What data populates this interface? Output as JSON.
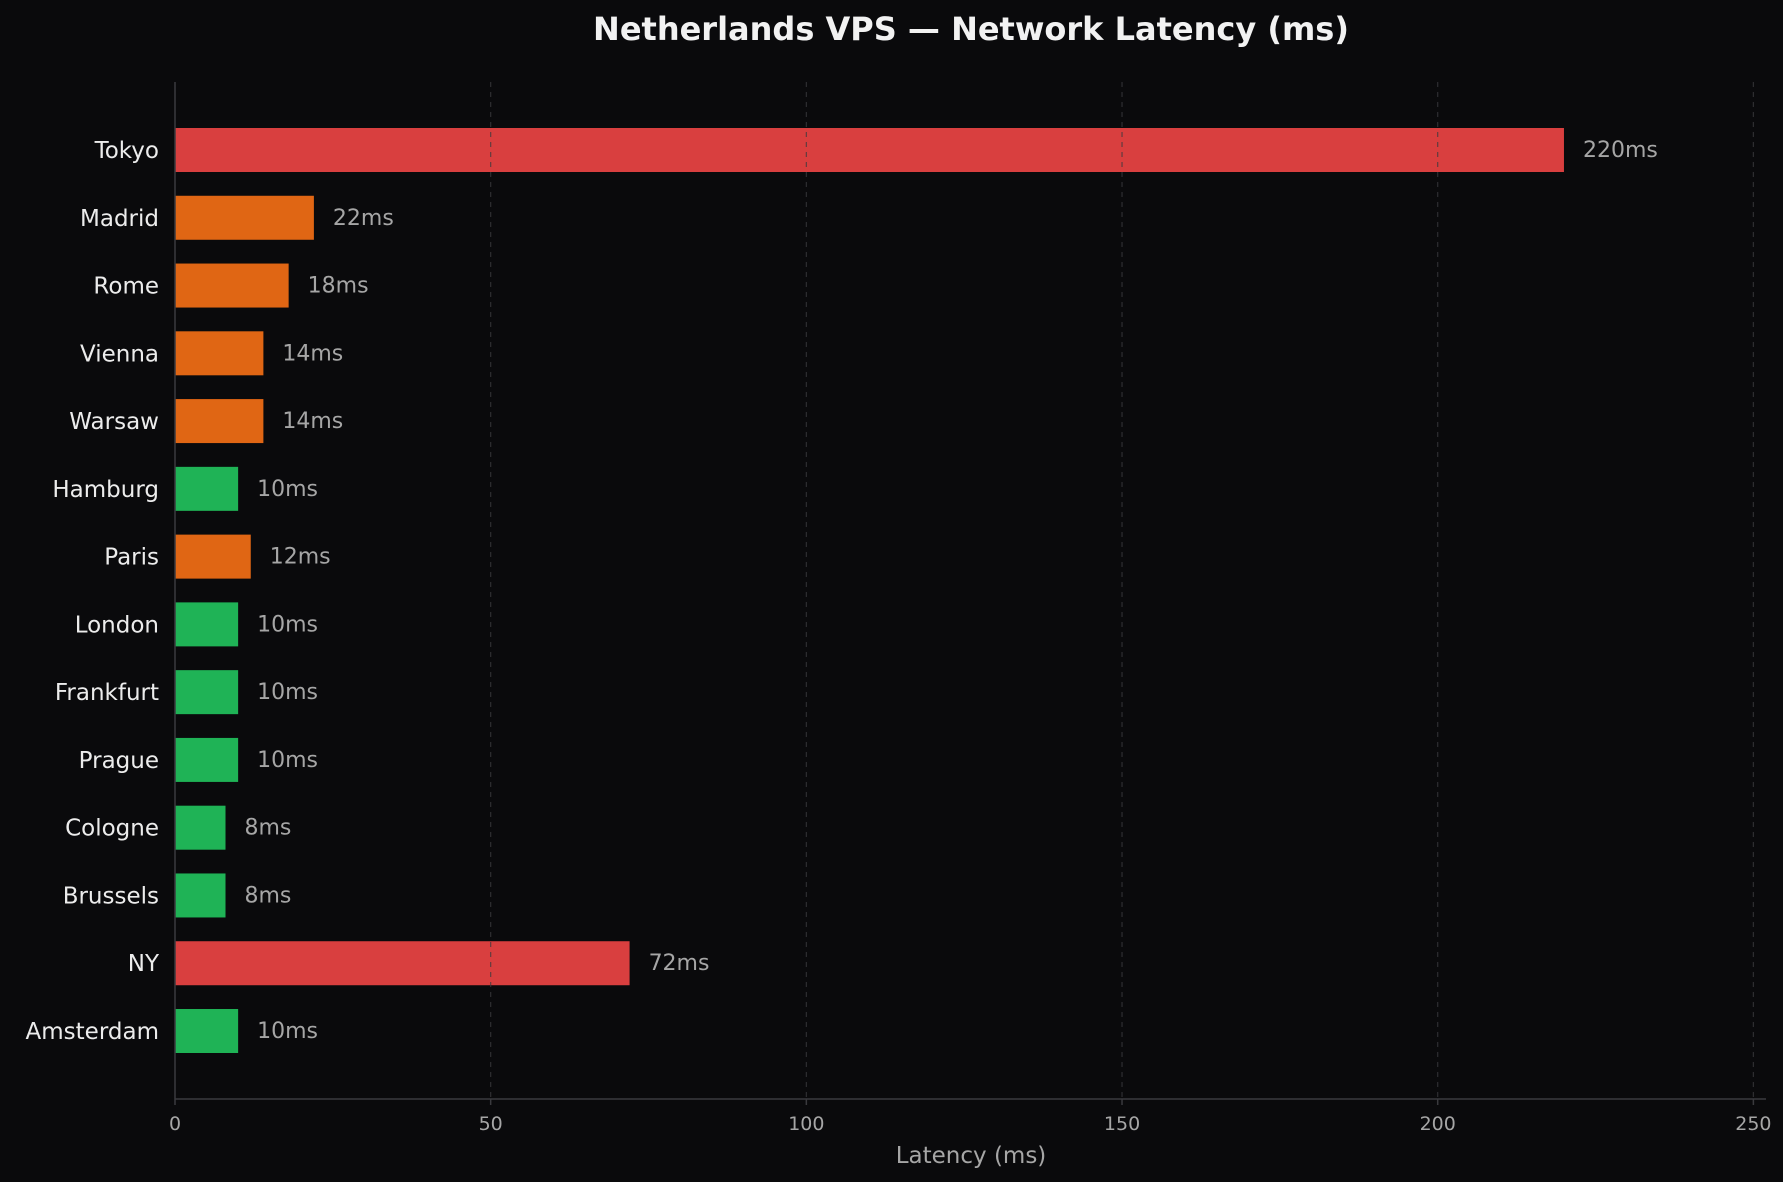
{
  "chart_data": {
    "type": "bar",
    "orientation": "horizontal",
    "title": "Netherlands VPS — Network Latency (ms)",
    "xlabel": "Latency (ms)",
    "ylabel": "",
    "xlim": [
      0,
      252
    ],
    "xticks": [
      0,
      50,
      100,
      150,
      200,
      250
    ],
    "grid": "vertical dashed",
    "legend": "none",
    "value_suffix": "ms",
    "categories": [
      "Tokyo",
      "Madrid",
      "Rome",
      "Vienna",
      "Warsaw",
      "Hamburg",
      "Paris",
      "London",
      "Frankfurt",
      "Prague",
      "Cologne",
      "Brussels",
      "NY",
      "Amsterdam"
    ],
    "values": [
      220,
      22,
      18,
      14,
      14,
      10,
      12,
      10,
      10,
      10,
      8,
      8,
      72,
      10
    ],
    "value_labels": [
      "220ms",
      "22ms",
      "18ms",
      "14ms",
      "14ms",
      "10ms",
      "12ms",
      "10ms",
      "10ms",
      "10ms",
      "8ms",
      "8ms",
      "72ms",
      "10ms"
    ],
    "bar_colors": [
      "#d93f3f",
      "#e06614",
      "#e06614",
      "#e06614",
      "#e06614",
      "#1fb356",
      "#e06614",
      "#1fb356",
      "#1fb356",
      "#1fb356",
      "#1fb356",
      "#1fb356",
      "#d93f3f",
      "#1fb356"
    ],
    "colors": {
      "background": "#0a0a0c",
      "title": "#f2f2f2",
      "category_label": "#ececec",
      "value_label": "#a6a6a6",
      "tick_label": "#a6a6a6",
      "axis": "#3a3a3e",
      "grid": "#3a3a3e"
    }
  }
}
